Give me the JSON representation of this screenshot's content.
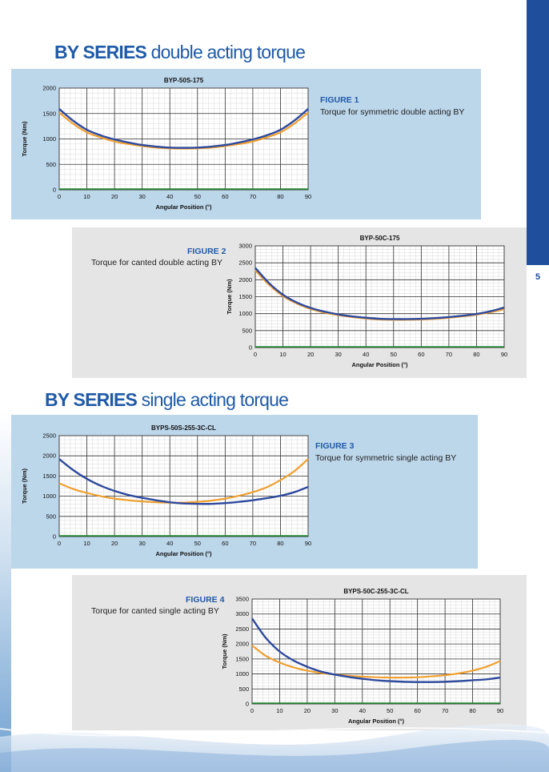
{
  "page": {
    "number": "5",
    "accent_color": "#1f4e9c"
  },
  "sections": [
    {
      "bold": "BY SERIES",
      "rest": " double acting torque"
    },
    {
      "bold": "BY SERIES",
      "rest": " single acting torque"
    }
  ],
  "figures": [
    {
      "label": "FIGURE 1",
      "caption": "Torque for symmetric double acting BY"
    },
    {
      "label": "FIGURE 2",
      "caption": "Torque for canted double acting BY"
    },
    {
      "label": "FIGURE 3",
      "caption": "Torque for symmetric single acting BY"
    },
    {
      "label": "FIGURE 4",
      "caption": "Torque for canted single acting BY"
    }
  ],
  "series_colors": {
    "blue": "#2e4a9e",
    "orange": "#f0a030",
    "green": "#1a8a2a"
  },
  "chart_data": [
    {
      "type": "line",
      "title": "BYP-50S-175",
      "xlabel": "Angular Position (°)",
      "ylabel": "Torque (Nm)",
      "xlim": [
        0,
        90
      ],
      "ylim": [
        0,
        2000
      ],
      "xticks": [
        0,
        10,
        20,
        30,
        40,
        50,
        60,
        70,
        80,
        90
      ],
      "yticks": [
        0,
        500,
        1000,
        1500,
        2000
      ],
      "grid": true,
      "series": [
        {
          "color": "blue",
          "x": [
            0,
            5,
            10,
            15,
            20,
            25,
            30,
            35,
            40,
            45,
            50,
            55,
            60,
            65,
            70,
            75,
            80,
            85,
            90
          ],
          "y": [
            1590,
            1360,
            1180,
            1070,
            990,
            930,
            880,
            850,
            830,
            825,
            830,
            850,
            880,
            930,
            990,
            1070,
            1180,
            1360,
            1590
          ]
        },
        {
          "color": "orange",
          "x": [
            0,
            5,
            10,
            15,
            20,
            25,
            30,
            35,
            40,
            45,
            50,
            55,
            60,
            65,
            70,
            75,
            80,
            85,
            90
          ],
          "y": [
            1520,
            1300,
            1130,
            1030,
            950,
            900,
            860,
            830,
            815,
            810,
            815,
            830,
            860,
            900,
            950,
            1030,
            1130,
            1300,
            1520
          ]
        }
      ]
    },
    {
      "type": "line",
      "title": "BYP-50C-175",
      "xlabel": "Angular Position  (°)",
      "ylabel": "Torque (Nm)",
      "xlim": [
        0,
        90
      ],
      "ylim": [
        0,
        3000
      ],
      "xticks": [
        0,
        10,
        20,
        30,
        40,
        50,
        60,
        70,
        80,
        90
      ],
      "yticks": [
        0,
        500,
        1000,
        1500,
        2000,
        2500,
        3000
      ],
      "grid": true,
      "series": [
        {
          "color": "blue",
          "x": [
            0,
            5,
            10,
            15,
            20,
            25,
            30,
            35,
            40,
            45,
            50,
            55,
            60,
            65,
            70,
            75,
            80,
            85,
            90
          ],
          "y": [
            2350,
            1900,
            1560,
            1330,
            1170,
            1060,
            980,
            920,
            880,
            850,
            840,
            840,
            850,
            870,
            900,
            940,
            990,
            1070,
            1180
          ]
        },
        {
          "color": "orange",
          "x": [
            0,
            5,
            10,
            15,
            20,
            25,
            30,
            35,
            40,
            45,
            50,
            55,
            60,
            65,
            70,
            75,
            80,
            85,
            90
          ],
          "y": [
            2280,
            1850,
            1520,
            1300,
            1140,
            1030,
            960,
            900,
            860,
            830,
            820,
            820,
            830,
            850,
            880,
            920,
            970,
            1040,
            1130
          ]
        }
      ]
    },
    {
      "type": "line",
      "title": "BYPS-50S-255-3C-CL",
      "xlabel": "Angular Position  (°)",
      "ylabel": "Torque (Nm)",
      "xlim": [
        0,
        90
      ],
      "ylim": [
        0,
        2500
      ],
      "xticks": [
        0,
        10,
        20,
        30,
        40,
        50,
        60,
        70,
        80,
        90
      ],
      "yticks": [
        0,
        500,
        1000,
        1500,
        2000,
        2500
      ],
      "grid": true,
      "series": [
        {
          "color": "blue",
          "x": [
            0,
            5,
            10,
            15,
            20,
            25,
            30,
            35,
            40,
            45,
            50,
            55,
            60,
            65,
            70,
            75,
            80,
            85,
            90
          ],
          "y": [
            1920,
            1650,
            1430,
            1260,
            1130,
            1030,
            960,
            900,
            850,
            820,
            810,
            810,
            830,
            860,
            900,
            950,
            1010,
            1100,
            1230
          ]
        },
        {
          "color": "orange",
          "x": [
            0,
            5,
            10,
            15,
            20,
            25,
            30,
            35,
            40,
            45,
            50,
            55,
            60,
            65,
            70,
            75,
            80,
            85,
            90
          ],
          "y": [
            1320,
            1180,
            1080,
            1000,
            940,
            900,
            870,
            850,
            840,
            840,
            860,
            890,
            940,
            1010,
            1100,
            1220,
            1400,
            1620,
            1920
          ]
        }
      ]
    },
    {
      "type": "line",
      "title": "BYPS-50C-255-3C-CL",
      "xlabel": "Angular Position  (°)",
      "ylabel": "Torque (Nm)",
      "xlim": [
        0,
        90
      ],
      "ylim": [
        0,
        3500
      ],
      "xticks": [
        0,
        10,
        20,
        30,
        40,
        50,
        60,
        70,
        80,
        90
      ],
      "yticks": [
        0,
        500,
        1000,
        1500,
        2000,
        2500,
        3000,
        3500
      ],
      "grid": true,
      "series": [
        {
          "color": "blue",
          "x": [
            0,
            5,
            10,
            15,
            20,
            25,
            30,
            35,
            40,
            45,
            50,
            55,
            60,
            65,
            70,
            75,
            80,
            85,
            90
          ],
          "y": [
            2850,
            2200,
            1750,
            1450,
            1240,
            1080,
            980,
            900,
            840,
            790,
            760,
            740,
            730,
            730,
            740,
            760,
            790,
            820,
            880
          ]
        },
        {
          "color": "orange",
          "x": [
            0,
            5,
            10,
            15,
            20,
            25,
            30,
            35,
            40,
            45,
            50,
            55,
            60,
            65,
            70,
            75,
            80,
            85,
            90
          ],
          "y": [
            1950,
            1600,
            1380,
            1220,
            1110,
            1030,
            980,
            940,
            910,
            890,
            880,
            880,
            890,
            920,
            960,
            1020,
            1110,
            1240,
            1430
          ]
        }
      ]
    }
  ]
}
